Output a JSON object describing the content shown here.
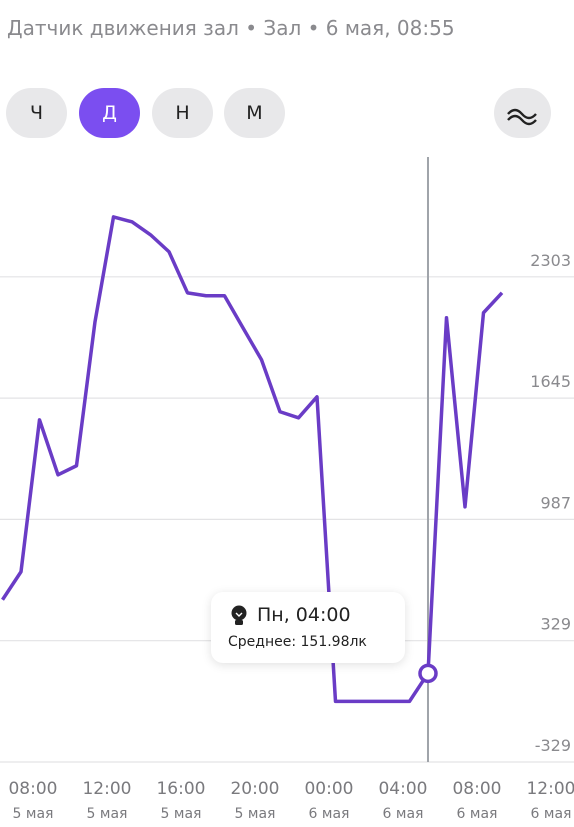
{
  "header": {
    "title": "Датчик движения зал • Зал • 6 мая, 08:55"
  },
  "buttons": {
    "labels": [
      "Ч",
      "Д",
      "Н",
      "М"
    ],
    "active": 1
  },
  "tooltip": {
    "title": "Пн, 04:00",
    "label": "Среднее: 151.98лк"
  },
  "chart_data": {
    "type": "line",
    "color": "#6a3cc6",
    "x": [
      5,
      6,
      7,
      8,
      9,
      10,
      11,
      12,
      13,
      14,
      15,
      16,
      17,
      18,
      19,
      20,
      21,
      22,
      23,
      24,
      25,
      26,
      27,
      28,
      29,
      30,
      31,
      32
    ],
    "values": [
      551,
      703,
      1527,
      1229,
      1278,
      2059,
      2628,
      2601,
      2531,
      2439,
      2216,
      2200,
      2200,
      2026,
      1853,
      1571,
      1538,
      1652,
      0,
      0,
      0,
      0,
      0,
      151.98,
      2081,
      1055,
      2108,
      2216
    ],
    "highlight": 28,
    "xlim": [
      4.865,
      35.892
    ],
    "ylim": [
      -329,
      2961
    ],
    "yticks": [
      -329,
      329,
      987,
      1645,
      2303
    ],
    "xticks": [
      {
        "value": 8,
        "label": "08:00"
      },
      {
        "value": 12,
        "label": "12:00"
      },
      {
        "value": 16,
        "label": "16:00"
      },
      {
        "value": 20,
        "label": "20:00"
      },
      {
        "value": 24,
        "label": "00:00"
      },
      {
        "value": 28,
        "label": "04:00"
      },
      {
        "value": 32,
        "label": "08:00"
      },
      {
        "value": 36,
        "label": "12:00"
      }
    ],
    "xtick_dates": [
      "5 мая",
      "5 мая",
      "5 мая",
      "5 мая",
      "6 мая",
      "6 мая",
      "6 мая",
      "6 мая"
    ],
    "grid": true
  }
}
